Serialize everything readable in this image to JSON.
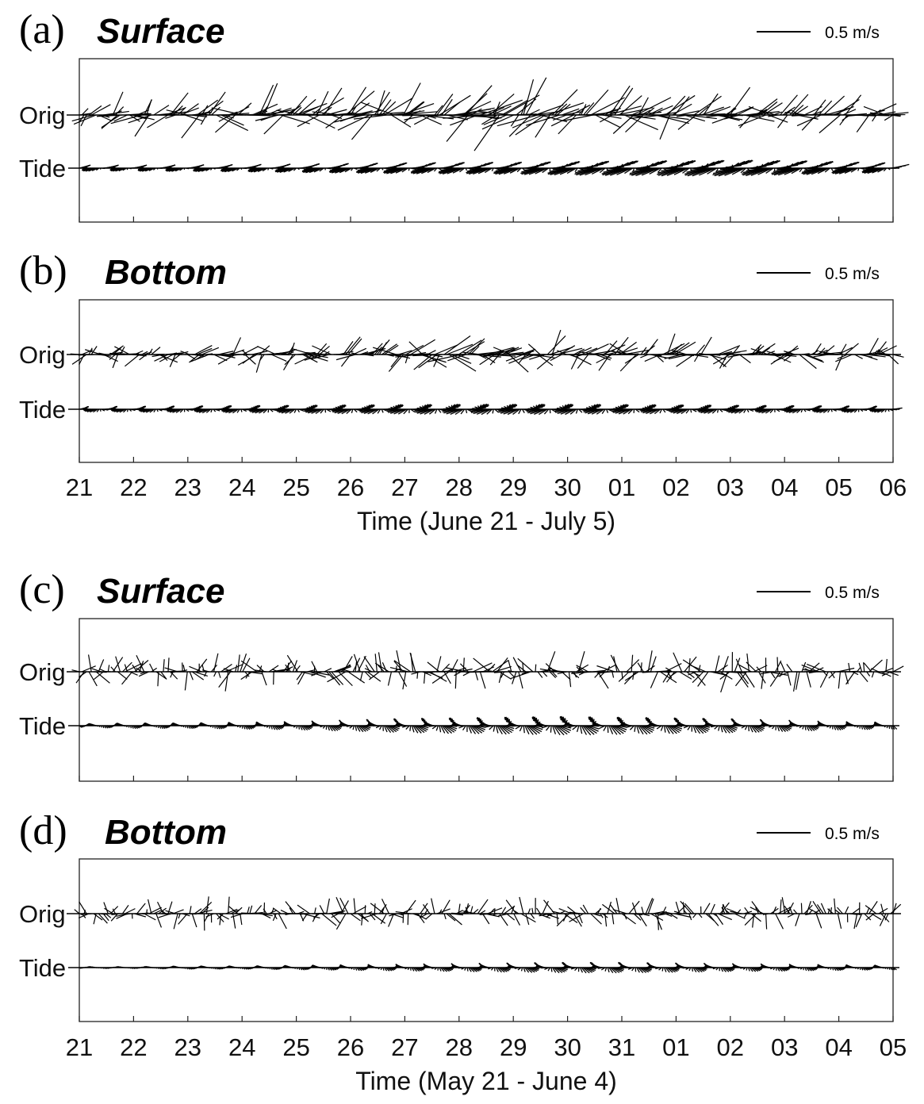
{
  "chart_data": [
    {
      "type": "stick",
      "panel": "(a)",
      "title": "Surface",
      "scale_label": "0.5 m/s",
      "rows": [
        "Orig",
        "Tide"
      ],
      "x_ticks": [
        "21",
        "22",
        "23",
        "24",
        "25",
        "26",
        "27",
        "28",
        "29",
        "30",
        "01",
        "02",
        "03",
        "04",
        "05",
        "06"
      ],
      "xlabel": "",
      "period": "June 21 - July 5",
      "orig": {
        "mean_dir_deg": 20,
        "spread_deg": 55,
        "speed": [
          0.2,
          0.22,
          0.24,
          0.25,
          0.24,
          0.26,
          0.28,
          0.32,
          0.3,
          0.28,
          0.27,
          0.26,
          0.24,
          0.22,
          0.2,
          0.18
        ],
        "seed": 11
      },
      "tide": {
        "major_dir_deg": 15,
        "minor_ratio": 0.12,
        "amp": [
          0.1,
          0.1,
          0.11,
          0.12,
          0.14,
          0.16,
          0.18,
          0.19,
          0.2,
          0.22,
          0.24,
          0.25,
          0.26,
          0.24,
          0.2,
          0.16
        ],
        "seed": 12
      }
    },
    {
      "type": "stick",
      "panel": "(b)",
      "title": "Bottom",
      "scale_label": "0.5 m/s",
      "rows": [
        "Orig",
        "Tide"
      ],
      "x_ticks": [
        "21",
        "22",
        "23",
        "24",
        "25",
        "26",
        "27",
        "28",
        "29",
        "30",
        "01",
        "02",
        "03",
        "04",
        "05",
        "06"
      ],
      "xlabel": "Time (June 21 - July 5)",
      "period": "June 21 - July 5",
      "orig": {
        "mean_dir_deg": 15,
        "spread_deg": 60,
        "speed": [
          0.14,
          0.15,
          0.14,
          0.15,
          0.15,
          0.16,
          0.2,
          0.26,
          0.2,
          0.18,
          0.18,
          0.17,
          0.17,
          0.16,
          0.16,
          0.15
        ],
        "seed": 21
      },
      "tide": {
        "major_dir_deg": 12,
        "minor_ratio": 0.25,
        "amp": [
          0.08,
          0.09,
          0.1,
          0.11,
          0.12,
          0.13,
          0.14,
          0.15,
          0.15,
          0.15,
          0.14,
          0.13,
          0.12,
          0.11,
          0.1,
          0.09
        ],
        "seed": 22
      }
    },
    {
      "type": "stick",
      "panel": "(c)",
      "title": "Surface",
      "scale_label": "0.5 m/s",
      "rows": [
        "Orig",
        "Tide"
      ],
      "x_ticks": [
        "21",
        "22",
        "23",
        "24",
        "25",
        "26",
        "27",
        "28",
        "29",
        "30",
        "31",
        "01",
        "02",
        "03",
        "04",
        "05"
      ],
      "xlabel": "",
      "period": "May 21 - June 4",
      "orig": {
        "mean_dir_deg": 60,
        "spread_deg": 180,
        "speed": [
          0.12,
          0.13,
          0.13,
          0.14,
          0.14,
          0.15,
          0.15,
          0.15,
          0.15,
          0.15,
          0.15,
          0.15,
          0.15,
          0.15,
          0.14,
          0.13
        ],
        "seed": 31
      },
      "tide": {
        "major_dir_deg": -35,
        "minor_ratio": 0.45,
        "amp": [
          0.03,
          0.04,
          0.04,
          0.05,
          0.06,
          0.08,
          0.1,
          0.11,
          0.12,
          0.13,
          0.12,
          0.11,
          0.1,
          0.08,
          0.06,
          0.05
        ],
        "seed": 32
      }
    },
    {
      "type": "stick",
      "panel": "(d)",
      "title": "Bottom",
      "scale_label": "0.5 m/s",
      "rows": [
        "Orig",
        "Tide"
      ],
      "x_ticks": [
        "21",
        "22",
        "23",
        "24",
        "25",
        "26",
        "27",
        "28",
        "29",
        "30",
        "31",
        "01",
        "02",
        "03",
        "04",
        "05"
      ],
      "xlabel": "Time (May 21 - June 4)",
      "period": "May 21 - June 4",
      "orig": {
        "mean_dir_deg": 50,
        "spread_deg": 180,
        "speed": [
          0.1,
          0.11,
          0.12,
          0.12,
          0.13,
          0.13,
          0.12,
          0.12,
          0.12,
          0.12,
          0.12,
          0.12,
          0.12,
          0.12,
          0.11,
          0.1
        ],
        "seed": 41
      },
      "tide": {
        "major_dir_deg": -25,
        "minor_ratio": 0.4,
        "amp": [
          0.02,
          0.02,
          0.03,
          0.03,
          0.04,
          0.05,
          0.06,
          0.07,
          0.08,
          0.09,
          0.09,
          0.08,
          0.07,
          0.06,
          0.05,
          0.04
        ],
        "seed": 42
      }
    }
  ]
}
